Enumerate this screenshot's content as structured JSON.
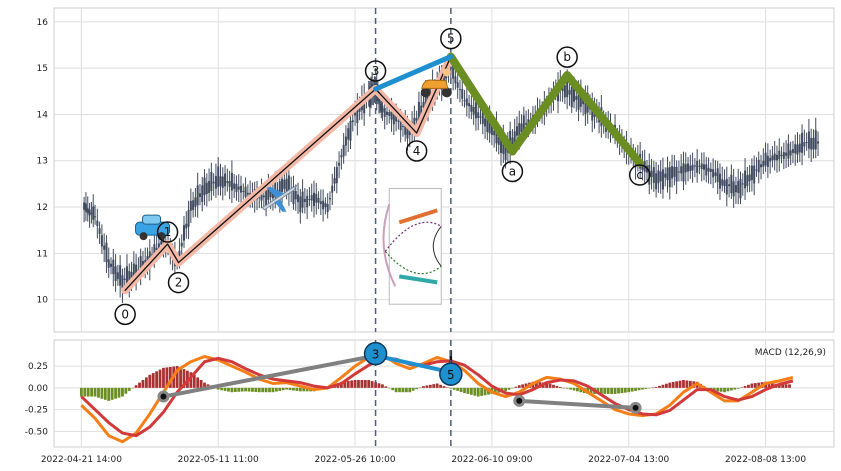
{
  "chart_data": {
    "type": "line",
    "title": "",
    "price_panel": {
      "chart_type": "candlestick",
      "ylim": [
        9.3,
        16.3
      ],
      "yticks": [
        "10",
        "11",
        "12",
        "13",
        "14",
        "15",
        "16"
      ],
      "grid": true,
      "close_series": [
        [
          0.2,
          12.0
        ],
        [
          1.0,
          11.8
        ],
        [
          2.0,
          10.8
        ],
        [
          3.0,
          10.4
        ],
        [
          4.0,
          10.6
        ],
        [
          5.0,
          10.9
        ],
        [
          6.0,
          11.3
        ],
        [
          7.0,
          10.8
        ],
        [
          8.0,
          12.0
        ],
        [
          9.0,
          12.4
        ],
        [
          10.0,
          12.6
        ],
        [
          11.0,
          12.5
        ],
        [
          12.0,
          12.3
        ],
        [
          13.0,
          12.2
        ],
        [
          14.0,
          12.3
        ],
        [
          15.0,
          12.5
        ],
        [
          16.0,
          12.1
        ],
        [
          17.0,
          12.2
        ],
        [
          18.0,
          12.0
        ],
        [
          19.0,
          13.1
        ],
        [
          20.0,
          14.0
        ],
        [
          21.0,
          14.4
        ],
        [
          21.5,
          14.6
        ],
        [
          22.0,
          14.1
        ],
        [
          23.0,
          13.9
        ],
        [
          24.0,
          13.6
        ],
        [
          25.0,
          14.2
        ],
        [
          26.0,
          14.6
        ],
        [
          27.0,
          15.0
        ],
        [
          28.0,
          14.3
        ],
        [
          29.0,
          14.0
        ],
        [
          30.0,
          13.7
        ],
        [
          31.0,
          13.2
        ],
        [
          32.0,
          13.7
        ],
        [
          33.0,
          13.9
        ],
        [
          34.0,
          14.2
        ],
        [
          35.0,
          14.6
        ],
        [
          36.0,
          14.4
        ],
        [
          37.0,
          14.2
        ],
        [
          38.0,
          13.9
        ],
        [
          39.0,
          13.6
        ],
        [
          40.0,
          13.2
        ],
        [
          41.0,
          12.9
        ],
        [
          42.0,
          12.6
        ],
        [
          43.0,
          12.7
        ],
        [
          44.0,
          12.8
        ],
        [
          45.0,
          12.9
        ],
        [
          46.0,
          12.8
        ],
        [
          47.0,
          12.5
        ],
        [
          48.0,
          12.4
        ],
        [
          49.0,
          12.7
        ],
        [
          50.0,
          13.0
        ],
        [
          51.0,
          13.1
        ],
        [
          52.0,
          13.2
        ],
        [
          53.0,
          13.4
        ],
        [
          54.0,
          13.4
        ]
      ],
      "wave_points": [
        {
          "label": "0",
          "x": 3.2,
          "y": 10.2
        },
        {
          "label": "1",
          "x": 6.3,
          "y": 11.2
        },
        {
          "label": "2",
          "x": 7.1,
          "y": 10.8
        },
        {
          "label": "3",
          "x": 21.5,
          "y": 14.55
        },
        {
          "label": "4",
          "x": 24.5,
          "y": 13.6
        },
        {
          "label": "5",
          "x": 27.0,
          "y": 15.25
        },
        {
          "label": "a",
          "x": 31.5,
          "y": 13.2
        },
        {
          "label": "b",
          "x": 35.5,
          "y": 14.85
        },
        {
          "label": "c",
          "x": 40.8,
          "y": 12.95
        }
      ],
      "connector_points": [
        {
          "x": 21.5,
          "y": 14.55
        },
        {
          "x": 27.0,
          "y": 15.25
        }
      ],
      "icons": [
        {
          "name": "car-icon",
          "x": 5.2,
          "y": 11.5
        },
        {
          "name": "airplane-icon",
          "x": 14.4,
          "y": 12.2
        },
        {
          "name": "scooter-icon",
          "x": 25.9,
          "y": 14.65
        }
      ],
      "inset_figure_area": {
        "x0": 22.5,
        "x1": 26.3,
        "y0": 9.9,
        "y1": 12.4
      },
      "vlines": [
        21.5,
        27.0
      ]
    },
    "macd_panel": {
      "legend": "MACD (12,26,9)",
      "legend_position": "top-right",
      "ylim": [
        -0.68,
        0.55
      ],
      "yticks": [
        "0.25",
        "0.00",
        "-0.25",
        "-0.50"
      ],
      "ytick_values": [
        0.25,
        0.0,
        -0.25,
        -0.5
      ],
      "grid": true,
      "macd_line": [
        [
          0.0,
          -0.2
        ],
        [
          1.0,
          -0.35
        ],
        [
          2.0,
          -0.55
        ],
        [
          3.0,
          -0.62
        ],
        [
          4.0,
          -0.52
        ],
        [
          5.0,
          -0.3
        ],
        [
          6.0,
          -0.05
        ],
        [
          7.0,
          0.2
        ],
        [
          8.0,
          0.3
        ],
        [
          9.0,
          0.36
        ],
        [
          10.0,
          0.32
        ],
        [
          11.0,
          0.25
        ],
        [
          12.0,
          0.18
        ],
        [
          13.0,
          0.1
        ],
        [
          14.0,
          0.05
        ],
        [
          15.0,
          0.06
        ],
        [
          16.0,
          0.02
        ],
        [
          17.0,
          -0.02
        ],
        [
          18.0,
          0.0
        ],
        [
          19.0,
          0.12
        ],
        [
          20.0,
          0.25
        ],
        [
          21.0,
          0.35
        ],
        [
          22.0,
          0.38
        ],
        [
          23.0,
          0.28
        ],
        [
          24.0,
          0.22
        ],
        [
          25.0,
          0.28
        ],
        [
          26.0,
          0.35
        ],
        [
          27.0,
          0.3
        ],
        [
          28.0,
          0.2
        ],
        [
          29.0,
          0.05
        ],
        [
          30.0,
          -0.05
        ],
        [
          31.0,
          -0.1
        ],
        [
          32.0,
          -0.05
        ],
        [
          33.0,
          0.05
        ],
        [
          34.0,
          0.12
        ],
        [
          35.0,
          0.1
        ],
        [
          36.0,
          0.05
        ],
        [
          37.0,
          -0.05
        ],
        [
          38.0,
          -0.15
        ],
        [
          39.0,
          -0.25
        ],
        [
          40.0,
          -0.3
        ],
        [
          41.0,
          -0.32
        ],
        [
          42.0,
          -0.3
        ],
        [
          43.0,
          -0.2
        ],
        [
          44.0,
          -0.05
        ],
        [
          45.0,
          0.05
        ],
        [
          46.0,
          -0.05
        ],
        [
          47.0,
          -0.15
        ],
        [
          48.0,
          -0.15
        ],
        [
          49.0,
          -0.05
        ],
        [
          50.0,
          0.05
        ],
        [
          51.0,
          0.08
        ],
        [
          52.0,
          0.12
        ]
      ],
      "signal_line": [
        [
          0.0,
          -0.1
        ],
        [
          1.0,
          -0.25
        ],
        [
          2.0,
          -0.4
        ],
        [
          3.0,
          -0.52
        ],
        [
          4.0,
          -0.55
        ],
        [
          5.0,
          -0.45
        ],
        [
          6.0,
          -0.28
        ],
        [
          7.0,
          -0.05
        ],
        [
          8.0,
          0.12
        ],
        [
          9.0,
          0.3
        ],
        [
          10.0,
          0.34
        ],
        [
          11.0,
          0.3
        ],
        [
          12.0,
          0.22
        ],
        [
          13.0,
          0.15
        ],
        [
          14.0,
          0.1
        ],
        [
          15.0,
          0.08
        ],
        [
          16.0,
          0.06
        ],
        [
          17.0,
          0.02
        ],
        [
          18.0,
          0.0
        ],
        [
          19.0,
          0.05
        ],
        [
          20.0,
          0.16
        ],
        [
          21.0,
          0.26
        ],
        [
          22.0,
          0.34
        ],
        [
          23.0,
          0.33
        ],
        [
          24.0,
          0.27
        ],
        [
          25.0,
          0.26
        ],
        [
          26.0,
          0.3
        ],
        [
          27.0,
          0.31
        ],
        [
          28.0,
          0.26
        ],
        [
          29.0,
          0.15
        ],
        [
          30.0,
          0.02
        ],
        [
          31.0,
          -0.06
        ],
        [
          32.0,
          -0.08
        ],
        [
          33.0,
          -0.02
        ],
        [
          34.0,
          0.06
        ],
        [
          35.0,
          0.09
        ],
        [
          36.0,
          0.08
        ],
        [
          37.0,
          0.02
        ],
        [
          38.0,
          -0.08
        ],
        [
          39.0,
          -0.18
        ],
        [
          40.0,
          -0.25
        ],
        [
          41.0,
          -0.3
        ],
        [
          42.0,
          -0.31
        ],
        [
          43.0,
          -0.26
        ],
        [
          44.0,
          -0.14
        ],
        [
          45.0,
          -0.02
        ],
        [
          46.0,
          -0.02
        ],
        [
          47.0,
          -0.1
        ],
        [
          48.0,
          -0.14
        ],
        [
          49.0,
          -0.1
        ],
        [
          50.0,
          -0.02
        ],
        [
          51.0,
          0.04
        ],
        [
          52.0,
          0.08
        ]
      ],
      "histogram": [
        [
          0.0,
          -0.1
        ],
        [
          1.0,
          -0.1
        ],
        [
          2.0,
          -0.15
        ],
        [
          3.0,
          -0.1
        ],
        [
          4.0,
          0.03
        ],
        [
          5.0,
          0.15
        ],
        [
          6.0,
          0.23
        ],
        [
          7.0,
          0.25
        ],
        [
          8.0,
          0.18
        ],
        [
          9.0,
          0.06
        ],
        [
          10.0,
          -0.02
        ],
        [
          11.0,
          -0.05
        ],
        [
          12.0,
          -0.04
        ],
        [
          13.0,
          -0.05
        ],
        [
          14.0,
          -0.05
        ],
        [
          15.0,
          -0.02
        ],
        [
          16.0,
          -0.04
        ],
        [
          17.0,
          -0.04
        ],
        [
          18.0,
          0.0
        ],
        [
          19.0,
          0.07
        ],
        [
          20.0,
          0.09
        ],
        [
          21.0,
          0.09
        ],
        [
          22.0,
          0.04
        ],
        [
          23.0,
          -0.05
        ],
        [
          24.0,
          -0.05
        ],
        [
          25.0,
          0.02
        ],
        [
          26.0,
          0.05
        ],
        [
          27.0,
          -0.01
        ],
        [
          28.0,
          -0.06
        ],
        [
          29.0,
          -0.1
        ],
        [
          30.0,
          -0.07
        ],
        [
          31.0,
          -0.04
        ],
        [
          32.0,
          0.03
        ],
        [
          33.0,
          0.07
        ],
        [
          34.0,
          0.06
        ],
        [
          35.0,
          0.01
        ],
        [
          36.0,
          -0.03
        ],
        [
          37.0,
          -0.07
        ],
        [
          38.0,
          -0.07
        ],
        [
          39.0,
          -0.07
        ],
        [
          40.0,
          -0.05
        ],
        [
          41.0,
          -0.02
        ],
        [
          42.0,
          0.01
        ],
        [
          43.0,
          0.06
        ],
        [
          44.0,
          0.09
        ],
        [
          45.0,
          0.07
        ],
        [
          46.0,
          -0.03
        ],
        [
          47.0,
          -0.05
        ],
        [
          48.0,
          -0.01
        ],
        [
          49.0,
          0.05
        ],
        [
          50.0,
          0.07
        ],
        [
          51.0,
          0.04
        ],
        [
          52.0,
          0.04
        ]
      ],
      "wave_markers": [
        {
          "label": "3",
          "x": 21.5,
          "y": 0.37
        },
        {
          "label": "5",
          "x": 27.0,
          "y": 0.18
        }
      ],
      "divergence_lines": [
        [
          {
            "x": 6.0,
            "y": -0.1
          },
          {
            "x": 21.5,
            "y": 0.37
          }
        ],
        [
          {
            "x": 32.0,
            "y": -0.15
          },
          {
            "x": 40.5,
            "y": -0.23
          }
        ]
      ],
      "black_dots": [
        {
          "x": 6.0,
          "y": -0.1
        },
        {
          "x": 32.0,
          "y": -0.15
        },
        {
          "x": 40.5,
          "y": -0.23
        },
        {
          "x": 27.0,
          "y": 0.18
        }
      ]
    },
    "x_axis": {
      "range": [
        -2.0,
        55.0
      ],
      "ticks": [
        {
          "label": "2022-04-21 14:00",
          "x": 0.0
        },
        {
          "label": "2022-05-11 11:00",
          "x": 10.0
        },
        {
          "label": "2022-05-26 10:00",
          "x": 20.0
        },
        {
          "label": "2022-06-10 09:00",
          "x": 30.0
        },
        {
          "label": "2022-07-04 13:00",
          "x": 40.0
        },
        {
          "label": "2022-08-08 13:00",
          "x": 50.0
        }
      ]
    },
    "colors": {
      "wave_up": "#f4b8a6",
      "wave_line": "#111111",
      "wave_c": "#6b8e23",
      "connector": "#1e90d0",
      "macd": "#f57f17",
      "signal": "#d23a3a",
      "hist_pos": "#a83232",
      "hist_neg": "#6b8e23",
      "candle": "#3f4a5e",
      "divergence": "#808080",
      "vline": "#4a5f7a"
    }
  }
}
